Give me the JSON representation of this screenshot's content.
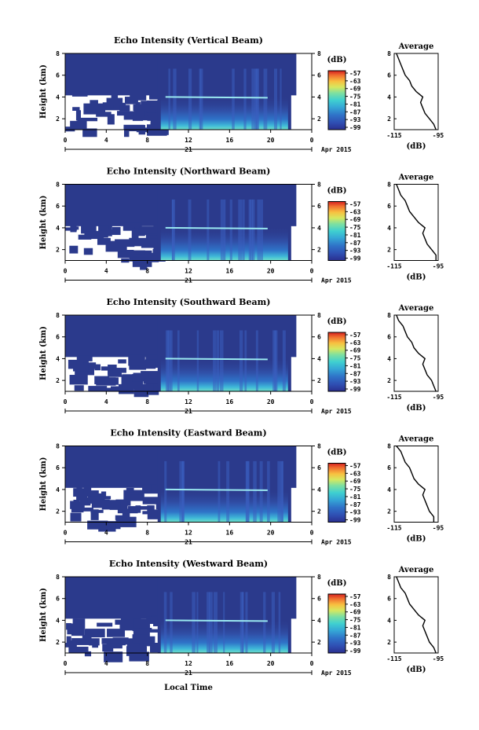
{
  "colors": {
    "background_low": "#2b3a8c",
    "colorbar": [
      "#2a2f8f",
      "#2f4fb3",
      "#2f73c8",
      "#35a7d6",
      "#3fd0d0",
      "#7ee0a0",
      "#d6e860",
      "#f8c040",
      "#f07030",
      "#d62020"
    ],
    "frame": "#000000"
  },
  "panels": [
    {
      "title": "Echo Intensity (Vertical Beam)",
      "ylabel": "Height (km)",
      "y_ticks": [
        "8",
        "6",
        "4",
        "2"
      ],
      "x_ticks": [
        "0",
        "4",
        "8",
        "12",
        "16",
        "20",
        "0"
      ],
      "date_day": "21",
      "date_label": "Apr 2015",
      "cb_unit": "(dB)",
      "cb_ticks": [
        "-57",
        "-63",
        "-69",
        "-75",
        "-81",
        "-87",
        "-93",
        "-99"
      ],
      "avg_title": "Average",
      "avg_x_ticks": [
        "-115",
        "-95"
      ],
      "avg_y_ticks": [
        "8",
        "6",
        "4",
        "2"
      ],
      "avg_xlabel": "(dB)"
    },
    {
      "title": "Echo Intensity (Northward Beam)",
      "ylabel": "Height (km)",
      "y_ticks": [
        "8",
        "6",
        "4",
        "2"
      ],
      "x_ticks": [
        "0",
        "4",
        "8",
        "12",
        "16",
        "20",
        "0"
      ],
      "date_day": "21",
      "date_label": "Apr 2015",
      "cb_unit": "(dB)",
      "cb_ticks": [
        "-57",
        "-63",
        "-69",
        "-75",
        "-81",
        "-87",
        "-93",
        "-99"
      ],
      "avg_title": "Average",
      "avg_x_ticks": [
        "-115",
        "-95"
      ],
      "avg_y_ticks": [
        "8",
        "6",
        "4",
        "2"
      ],
      "avg_xlabel": "(dB)"
    },
    {
      "title": "Echo Intensity (Southward Beam)",
      "ylabel": "Height (km)",
      "y_ticks": [
        "8",
        "6",
        "4",
        "2"
      ],
      "x_ticks": [
        "0",
        "4",
        "8",
        "12",
        "16",
        "20",
        "0"
      ],
      "date_day": "21",
      "date_label": "Apr 2015",
      "cb_unit": "(dB)",
      "cb_ticks": [
        "-57",
        "-63",
        "-69",
        "-75",
        "-81",
        "-87",
        "-93",
        "-99"
      ],
      "avg_title": "Average",
      "avg_x_ticks": [
        "-115",
        "-95"
      ],
      "avg_y_ticks": [
        "8",
        "6",
        "4",
        "2"
      ],
      "avg_xlabel": "(dB)"
    },
    {
      "title": "Echo Intensity (Eastward Beam)",
      "ylabel": "Height (km)",
      "y_ticks": [
        "8",
        "6",
        "4",
        "2"
      ],
      "x_ticks": [
        "0",
        "4",
        "8",
        "12",
        "16",
        "20",
        "0"
      ],
      "date_day": "21",
      "date_label": "Apr 2015",
      "cb_unit": "(dB)",
      "cb_ticks": [
        "-57",
        "-63",
        "-69",
        "-75",
        "-81",
        "-87",
        "-93",
        "-99"
      ],
      "avg_title": "Average",
      "avg_x_ticks": [
        "-115",
        "-95"
      ],
      "avg_y_ticks": [
        "8",
        "6",
        "4",
        "2"
      ],
      "avg_xlabel": "(dB)"
    },
    {
      "title": "Echo Intensity (Westward Beam)",
      "ylabel": "Height (km)",
      "y_ticks": [
        "8",
        "6",
        "4",
        "2"
      ],
      "x_ticks": [
        "0",
        "4",
        "8",
        "12",
        "16",
        "20",
        "0"
      ],
      "date_day": "21",
      "date_label": "Apr 2015",
      "cb_unit": "(dB)",
      "cb_ticks": [
        "-57",
        "-63",
        "-69",
        "-75",
        "-81",
        "-87",
        "-93",
        "-99"
      ],
      "avg_title": "Average",
      "avg_x_ticks": [
        "-115",
        "-95"
      ],
      "avg_y_ticks": [
        "8",
        "6",
        "4",
        "2"
      ],
      "avg_xlabel": "(dB)"
    }
  ],
  "bottom_xlabel": "Local Time",
  "chart_data": [
    {
      "type": "heatmap",
      "title": "Echo Intensity (Vertical Beam)",
      "xlabel": "",
      "ylabel": "Height (km)",
      "xlim": [
        0,
        24
      ],
      "ylim": [
        1,
        8
      ],
      "colorbar_label": "(dB)",
      "colorbar_range": [
        -99,
        -57
      ],
      "layer_height_km": 4,
      "enhanced_period_hours": [
        9,
        22
      ],
      "average_profile": {
        "title": "Average",
        "xlabel": "(dB)",
        "xlim": [
          -115,
          -95
        ],
        "height_km": [
          1.0,
          1.5,
          2.0,
          2.5,
          3.0,
          3.5,
          4.0,
          4.5,
          5.0,
          5.5,
          6.0,
          6.5,
          7.0,
          7.5,
          8.0
        ],
        "values_db": [
          -96,
          -97,
          -99,
          -101,
          -102,
          -103,
          -102,
          -105,
          -107,
          -108,
          -110,
          -111,
          -112,
          -113,
          -114
        ]
      }
    },
    {
      "type": "heatmap",
      "title": "Echo Intensity (Northward Beam)",
      "xlabel": "",
      "ylabel": "Height (km)",
      "xlim": [
        0,
        24
      ],
      "ylim": [
        1,
        8
      ],
      "colorbar_label": "(dB)",
      "colorbar_range": [
        -99,
        -57
      ],
      "layer_height_km": 4,
      "enhanced_period_hours": [
        9,
        22
      ],
      "average_profile": {
        "title": "Average",
        "xlabel": "(dB)",
        "xlim": [
          -115,
          -95
        ],
        "height_km": [
          1.0,
          1.5,
          2.0,
          2.5,
          3.0,
          3.5,
          4.0,
          4.5,
          5.0,
          5.5,
          6.0,
          6.5,
          7.0,
          7.5,
          8.0
        ],
        "values_db": [
          -96,
          -96,
          -98,
          -100,
          -101,
          -102,
          -101,
          -104,
          -106,
          -108,
          -109,
          -110,
          -112,
          -113,
          -114
        ]
      }
    },
    {
      "type": "heatmap",
      "title": "Echo Intensity (Southward Beam)",
      "xlabel": "",
      "ylabel": "Height (km)",
      "xlim": [
        0,
        24
      ],
      "ylim": [
        1,
        8
      ],
      "colorbar_label": "(dB)",
      "colorbar_range": [
        -99,
        -57
      ],
      "layer_height_km": 4,
      "enhanced_period_hours": [
        9,
        22
      ],
      "average_profile": {
        "title": "Average",
        "xlabel": "(dB)",
        "xlim": [
          -115,
          -95
        ],
        "height_km": [
          1.0,
          1.5,
          2.0,
          2.5,
          3.0,
          3.5,
          4.0,
          4.5,
          5.0,
          5.5,
          6.0,
          6.5,
          7.0,
          7.5,
          8.0
        ],
        "values_db": [
          -96,
          -97,
          -98,
          -100,
          -101,
          -102,
          -101,
          -104,
          -106,
          -107,
          -109,
          -110,
          -111,
          -113,
          -114
        ]
      }
    },
    {
      "type": "heatmap",
      "title": "Echo Intensity (Eastward Beam)",
      "xlabel": "",
      "ylabel": "Height (km)",
      "xlim": [
        0,
        24
      ],
      "ylim": [
        1,
        8
      ],
      "colorbar_label": "(dB)",
      "colorbar_range": [
        -99,
        -57
      ],
      "layer_height_km": 4,
      "enhanced_period_hours": [
        9,
        22
      ],
      "average_profile": {
        "title": "Average",
        "xlabel": "(dB)",
        "xlim": [
          -115,
          -95
        ],
        "height_km": [
          1.0,
          1.5,
          2.0,
          2.5,
          3.0,
          3.5,
          4.0,
          4.5,
          5.0,
          5.5,
          6.0,
          6.5,
          7.0,
          7.5,
          8.0
        ],
        "values_db": [
          -97,
          -97,
          -99,
          -100,
          -101,
          -102,
          -101,
          -104,
          -106,
          -107,
          -108,
          -110,
          -111,
          -112,
          -114
        ]
      }
    },
    {
      "type": "heatmap",
      "title": "Echo Intensity (Westward Beam)",
      "xlabel": "Local Time",
      "ylabel": "Height (km)",
      "xlim": [
        0,
        24
      ],
      "ylim": [
        1,
        8
      ],
      "colorbar_label": "(dB)",
      "colorbar_range": [
        -99,
        -57
      ],
      "layer_height_km": 4,
      "enhanced_period_hours": [
        9,
        22
      ],
      "average_profile": {
        "title": "Average",
        "xlabel": "(dB)",
        "xlim": [
          -115,
          -95
        ],
        "height_km": [
          1.0,
          1.5,
          2.0,
          2.5,
          3.0,
          3.5,
          4.0,
          4.5,
          5.0,
          5.5,
          6.0,
          6.5,
          7.0,
          7.5,
          8.0
        ],
        "values_db": [
          -96,
          -97,
          -99,
          -100,
          -101,
          -102,
          -101,
          -104,
          -106,
          -108,
          -109,
          -110,
          -112,
          -113,
          -114
        ]
      }
    }
  ]
}
